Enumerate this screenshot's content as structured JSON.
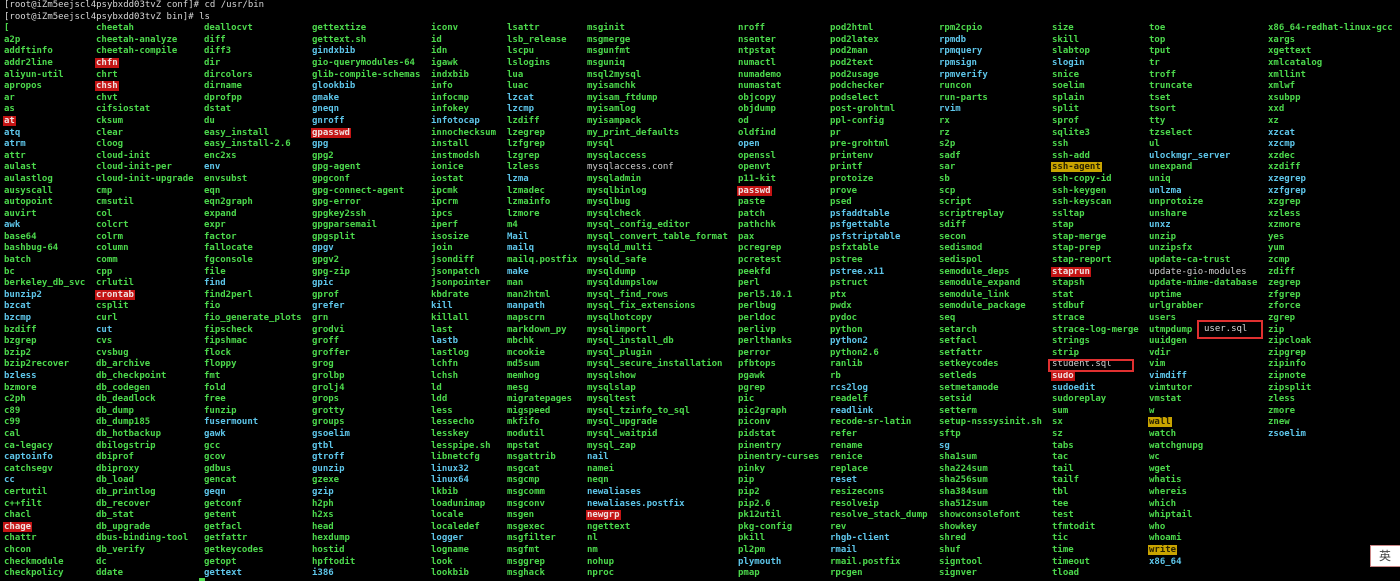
{
  "terminal": {
    "prompt_lines": [
      "[root@iZm5eejscl4psybxdd03tvZ conf]# cd /usr/bin",
      "[root@iZm5eejscl4psybxdd03tvZ bin]# ls"
    ],
    "colors": {
      "exec": "#4cd94c",
      "link": "#5ec6ea",
      "setuid_bg": "#c41414",
      "setgid_bg": "#c9a400",
      "file": "#cfcfcf",
      "background": "#000000",
      "annotation_box": "#e03030"
    }
  },
  "listing": {
    "columns": [
      [
        "[",
        "a2p",
        "addftinfo",
        "addr2line",
        "aliyun-util",
        "apropos",
        "ar",
        "as",
        {
          "n": "at",
          "t": "setuid"
        },
        {
          "n": "atq",
          "t": "link"
        },
        {
          "n": "atrm",
          "t": "link"
        },
        "attr",
        "aulast",
        "aulastlog",
        "ausyscall",
        "autopoint",
        "auvirt",
        {
          "n": "awk",
          "t": "link"
        },
        "base64",
        "bashbug-64",
        "batch",
        "bc",
        "berkeley_db_svc",
        {
          "n": "bunzip2",
          "t": "link"
        },
        {
          "n": "bzcat",
          "t": "link"
        },
        {
          "n": "bzcmp",
          "t": "link"
        },
        "bzdiff",
        "bzgrep",
        "bzip2",
        "bzip2recover",
        {
          "n": "bzless",
          "t": "link"
        },
        "bzmore",
        "c2ph",
        "c89",
        "c99",
        "cal",
        "ca-legacy",
        {
          "n": "captoinfo",
          "t": "link"
        },
        "catchsegv",
        {
          "n": "cc",
          "t": "link"
        },
        "certutil",
        "c++filt",
        "chacl",
        {
          "n": "chage",
          "t": "setuid"
        },
        "chattr",
        "chcon",
        "checkmodule",
        "checkpolicy"
      ],
      [
        "cheetah",
        "cheetah-analyze",
        "cheetah-compile",
        {
          "n": "chfn",
          "t": "setuid"
        },
        "chrt",
        {
          "n": "chsh",
          "t": "setuid"
        },
        "chvt",
        "cifsiostat",
        "cksum",
        "clear",
        "cloog",
        "cloud-init",
        "cloud-init-per",
        "cloud-init-upgrade",
        "cmp",
        "cmsutil",
        "col",
        "colcrt",
        "colrm",
        "column",
        "comm",
        "cpp",
        "crlutil",
        {
          "n": "crontab",
          "t": "setuid"
        },
        "csplit",
        "curl",
        {
          "n": "cut",
          "t": "link"
        },
        "cvs",
        "cvsbug",
        "db_archive",
        "db_checkpoint",
        "db_codegen",
        "db_deadlock",
        "db_dump",
        "db_dump185",
        "db_hotbackup",
        "dbilogstrip",
        "dbiprof",
        "dbiproxy",
        "db_load",
        "db_printlog",
        "db_recover",
        "db_stat",
        "db_upgrade",
        "dbus-binding-tool",
        "db_verify",
        "dc",
        "ddate"
      ],
      [
        "deallocvt",
        "diff",
        "diff3",
        "dir",
        "dircolors",
        "dirname",
        "dprofpp",
        "dstat",
        "du",
        "easy_install",
        "easy_install-2.6",
        "enc2xs",
        {
          "n": "env",
          "t": "link"
        },
        "envsubst",
        "eqn",
        "eqn2graph",
        "expand",
        "expr",
        "factor",
        "fallocate",
        "fgconsole",
        "file",
        {
          "n": "find",
          "t": "link"
        },
        "find2perl",
        "fio",
        "fio_generate_plots",
        "fipscheck",
        "fipshmac",
        "flock",
        "floppy",
        "fmt",
        "fold",
        "free",
        "funzip",
        {
          "n": "fusermount",
          "t": "link"
        },
        {
          "n": "gawk",
          "t": "link"
        },
        "gcc",
        "gcov",
        "gdbus",
        "gencat",
        {
          "n": "geqn",
          "t": "link"
        },
        "getconf",
        "getent",
        "getfacl",
        "getfattr",
        "getkeycodes",
        "getopt",
        {
          "n": "gettext",
          "t": "link"
        }
      ],
      [
        "gettextize",
        "gettext.sh",
        {
          "n": "gindxbib",
          "t": "link"
        },
        "gio-querymodules-64",
        "glib-compile-schemas",
        {
          "n": "glookbib",
          "t": "link"
        },
        {
          "n": "gmake",
          "t": "link"
        },
        {
          "n": "gneqn",
          "t": "link"
        },
        {
          "n": "gnroff",
          "t": "link"
        },
        {
          "n": "gpasswd",
          "t": "setuid"
        },
        {
          "n": "gpg",
          "t": "link"
        },
        "gpg2",
        "gpg-agent",
        "gpgconf",
        "gpg-connect-agent",
        "gpg-error",
        "gpgkey2ssh",
        "gpgparsemail",
        "gpgsplit",
        {
          "n": "gpgv",
          "t": "link"
        },
        "gpgv2",
        "gpg-zip",
        {
          "n": "gpic",
          "t": "link"
        },
        "gprof",
        {
          "n": "grefer",
          "t": "link"
        },
        "grn",
        "grodvi",
        "groff",
        "groffer",
        "grog",
        "grolbp",
        "grolj4",
        "grops",
        "grotty",
        "groups",
        {
          "n": "gsoelim",
          "t": "link"
        },
        {
          "n": "gtbl",
          "t": "link"
        },
        {
          "n": "gtroff",
          "t": "link"
        },
        {
          "n": "gunzip",
          "t": "link"
        },
        "gzexe",
        {
          "n": "gzip",
          "t": "link"
        },
        "h2ph",
        "h2xs",
        "head",
        "hexdump",
        "hostid",
        "hpftodit",
        {
          "n": "i386",
          "t": "link"
        }
      ],
      [
        "iconv",
        "id",
        "idn",
        "igawk",
        "indxbib",
        "info",
        "infocmp",
        "infokey",
        {
          "n": "infotocap",
          "t": "link"
        },
        "innochecksum",
        "install",
        "instmodsh",
        "ionice",
        "iostat",
        "ipcmk",
        "ipcrm",
        "ipcs",
        "iperf",
        "isosize",
        "join",
        "jsondiff",
        "jsonpatch",
        "jsonpointer",
        "kbdrate",
        {
          "n": "kill",
          "t": "link"
        },
        "killall",
        "last",
        {
          "n": "lastb",
          "t": "link"
        },
        "lastlog",
        "lchfn",
        "lchsh",
        "ld",
        "ldd",
        "less",
        "lessecho",
        "lesskey",
        "lesspipe.sh",
        "libnetcfg",
        {
          "n": "linux32",
          "t": "link"
        },
        {
          "n": "linux64",
          "t": "link"
        },
        "lkbib",
        "loadunimap",
        "locale",
        "localedef",
        {
          "n": "logger",
          "t": "link"
        },
        "logname",
        "look",
        "lookbib"
      ],
      [
        "lsattr",
        "lsb_release",
        "lscpu",
        "lslogins",
        "lua",
        "luac",
        {
          "n": "lzcat",
          "t": "link"
        },
        {
          "n": "lzcmp",
          "t": "link"
        },
        "lzdiff",
        "lzegrep",
        "lzfgrep",
        "lzgrep",
        "lzless",
        {
          "n": "lzma",
          "t": "link"
        },
        "lzmadec",
        "lzmainfo",
        "lzmore",
        "m4",
        {
          "n": "Mail",
          "t": "link"
        },
        {
          "n": "mailq",
          "t": "link"
        },
        "mailq.postfix",
        {
          "n": "make",
          "t": "link"
        },
        "man",
        "man2html",
        {
          "n": "manpath",
          "t": "link"
        },
        "mapscrn",
        "markdown_py",
        "mbchk",
        "mcookie",
        "md5sum",
        "memhog",
        "mesg",
        "migratepages",
        "migspeed",
        "mkfifo",
        "modutil",
        "mpstat",
        "msgattrib",
        "msgcat",
        "msgcmp",
        "msgcomm",
        "msgconv",
        "msgen",
        "msgexec",
        "msgfilter",
        "msgfmt",
        "msggrep",
        "msghack"
      ],
      [
        "msginit",
        "msgmerge",
        "msgunfmt",
        "msguniq",
        "msql2mysql",
        "myisamchk",
        "myisam_ftdump",
        "myisamlog",
        "myisampack",
        "my_print_defaults",
        "mysql",
        "mysqlaccess",
        {
          "n": "mysqlaccess.conf",
          "t": "file"
        },
        "mysqladmin",
        "mysqlbinlog",
        "mysqlbug",
        "mysqlcheck",
        "mysql_config_editor",
        "mysql_convert_table_format",
        "mysqld_multi",
        "mysqld_safe",
        "mysqldump",
        "mysqldumpslow",
        "mysql_find_rows",
        "mysql_fix_extensions",
        "mysqlhotcopy",
        "mysqlimport",
        "mysql_install_db",
        "mysql_plugin",
        "mysql_secure_installation",
        "mysqlshow",
        "mysqlslap",
        "mysqltest",
        "mysql_tzinfo_to_sql",
        "mysql_upgrade",
        "mysql_waitpid",
        "mysql_zap",
        {
          "n": "nail",
          "t": "link"
        },
        "namei",
        "neqn",
        {
          "n": "newaliases",
          "t": "link"
        },
        {
          "n": "newaliases.postfix",
          "t": "link"
        },
        {
          "n": "newgrp",
          "t": "setuid"
        },
        "ngettext",
        "nl",
        "nm",
        "nohup",
        "nproc"
      ],
      [
        "nroff",
        "nsenter",
        "ntpstat",
        "numactl",
        "numademo",
        "numastat",
        "objcopy",
        "objdump",
        "od",
        "oldfind",
        {
          "n": "open",
          "t": "link"
        },
        "openssl",
        "openvt",
        "p11-kit",
        {
          "n": "passwd",
          "t": "setuid"
        },
        "paste",
        "patch",
        "pathchk",
        "pax",
        "pcregrep",
        "pcretest",
        "peekfd",
        "perl",
        "perl5.10.1",
        "perlbug",
        "perldoc",
        "perlivp",
        "perlthanks",
        "perror",
        "pfbtops",
        "pgawk",
        "pgrep",
        "pic",
        "pic2graph",
        "piconv",
        "pidstat",
        "pinentry",
        "pinentry-curses",
        "pinky",
        "pip",
        "pip2",
        "pip2.6",
        "pk12util",
        "pkg-config",
        "pkill",
        "pl2pm",
        {
          "n": "plymouth",
          "t": "link"
        },
        "pmap"
      ],
      [
        "pod2html",
        "pod2latex",
        "pod2man",
        "pod2text",
        "pod2usage",
        "podchecker",
        "podselect",
        "post-grohtml",
        "ppl-config",
        "pr",
        "pre-grohtml",
        "printenv",
        "printf",
        "protoize",
        "prove",
        "psed",
        {
          "n": "psfaddtable",
          "t": "link"
        },
        {
          "n": "psfgettable",
          "t": "link"
        },
        {
          "n": "psfstriptable",
          "t": "link"
        },
        "psfxtable",
        "pstree",
        {
          "n": "pstree.x11",
          "t": "link"
        },
        "pstruct",
        "ptx",
        "pwdx",
        "pydoc",
        "python",
        {
          "n": "python2",
          "t": "link"
        },
        "python2.6",
        "ranlib",
        "rb",
        {
          "n": "rcs2log",
          "t": "link"
        },
        "readelf",
        {
          "n": "readlink",
          "t": "link"
        },
        "recode-sr-latin",
        "refer",
        "rename",
        "renice",
        "replace",
        {
          "n": "reset",
          "t": "link"
        },
        "resizecons",
        "resolveip",
        "resolve_stack_dump",
        "rev",
        {
          "n": "rhgb-client",
          "t": "link"
        },
        {
          "n": "rmail",
          "t": "link"
        },
        "rmail.postfix",
        "rpcgen"
      ],
      [
        "rpm2cpio",
        {
          "n": "rpmdb",
          "t": "link"
        },
        {
          "n": "rpmquery",
          "t": "link"
        },
        {
          "n": "rpmsign",
          "t": "link"
        },
        {
          "n": "rpmverify",
          "t": "link"
        },
        "runcon",
        "run-parts",
        {
          "n": "rvim",
          "t": "link"
        },
        "rx",
        "rz",
        "s2p",
        "sadf",
        "sar",
        "sb",
        "scp",
        "script",
        "scriptreplay",
        "sdiff",
        "secon",
        "sedismod",
        "sedispol",
        "semodule_deps",
        "semodule_expand",
        "semodule_link",
        "semodule_package",
        "seq",
        "setarch",
        "setfacl",
        "setfattr",
        "setkeycodes",
        "setleds",
        "setmetamode",
        "setsid",
        "setterm",
        "setup-nsssysinit.sh",
        "sftp",
        {
          "n": "sg",
          "t": "link"
        },
        "sha1sum",
        "sha224sum",
        "sha256sum",
        "sha384sum",
        "sha512sum",
        "showconsolefont",
        "showkey",
        "shred",
        "shuf",
        "signtool",
        "signver"
      ],
      [
        "size",
        "skill",
        "slabtop",
        {
          "n": "slogin",
          "t": "link"
        },
        "snice",
        "soelim",
        "splain",
        "split",
        "sprof",
        "sqlite3",
        "ssh",
        "ssh-add",
        {
          "n": "ssh-agent",
          "t": "setgid"
        },
        "ssh-copy-id",
        "ssh-keygen",
        "ssh-keyscan",
        "ssltap",
        "stap",
        "stap-merge",
        "stap-prep",
        "stap-report",
        {
          "n": "staprun",
          "t": "setuid"
        },
        "stapsh",
        "stat",
        "stdbuf",
        "strace",
        "strace-log-merge",
        "strings",
        "strip",
        {
          "n": "student.sql",
          "t": "file"
        },
        {
          "n": "sudo",
          "t": "setuid"
        },
        {
          "n": "sudoedit",
          "t": "link"
        },
        "sudoreplay",
        "sum",
        "sx",
        "sz",
        "tabs",
        "tac",
        "tail",
        "tailf",
        "tbl",
        "tee",
        "test",
        "tfmtodit",
        "tic",
        "time",
        "timeout",
        "tload"
      ],
      [
        "toe",
        "top",
        "tput",
        "tr",
        "troff",
        "truncate",
        "tset",
        "tsort",
        "tty",
        "tzselect",
        "ul",
        {
          "n": "ulockmgr_server",
          "t": "link"
        },
        "unexpand",
        "uniq",
        {
          "n": "unlzma",
          "t": "link"
        },
        "unprotoize",
        "unshare",
        {
          "n": "unxz",
          "t": "link"
        },
        "unzip",
        "unzipsfx",
        "update-ca-trust",
        {
          "n": "update-gio-modules",
          "t": "file"
        },
        "update-mime-database",
        "uptime",
        "urlgrabber",
        "users",
        "utmpdump",
        "uuidgen",
        "vdir",
        "vim",
        {
          "n": "vimdiff",
          "t": "link"
        },
        "vimtutor",
        "vmstat",
        "w",
        {
          "n": "wall",
          "t": "setgid"
        },
        "watch",
        "watchgnupg",
        "wc",
        "wget",
        "whatis",
        "whereis",
        "which",
        "whiptail",
        "who",
        "whoami",
        {
          "n": "write",
          "t": "setgid"
        },
        {
          "n": "x86_64",
          "t": "link"
        }
      ],
      [
        "x86_64-redhat-linux-gcc",
        "xargs",
        "xgettext",
        "xmlcatalog",
        "xmllint",
        "xmlwf",
        "xsubpp",
        "xxd",
        "xz",
        {
          "n": "xzcat",
          "t": "link"
        },
        {
          "n": "xzcmp",
          "t": "link"
        },
        "xzdec",
        "xzdiff",
        {
          "n": "xzegrep",
          "t": "link"
        },
        {
          "n": "xzfgrep",
          "t": "link"
        },
        "xzgrep",
        "xzless",
        "xzmore",
        "yes",
        "yum",
        "zcmp",
        "zdiff",
        "zegrep",
        "zfgrep",
        "zforce",
        "zgrep",
        "zip",
        "zipcloak",
        "zipgrep",
        "zipinfo",
        "zipnote",
        "zipsplit",
        "zless",
        "zmore",
        "znew",
        {
          "n": "zsoelim",
          "t": "link"
        }
      ]
    ]
  },
  "annotations": {
    "user_box_label": "user.sql"
  },
  "ime": {
    "label": "英"
  }
}
